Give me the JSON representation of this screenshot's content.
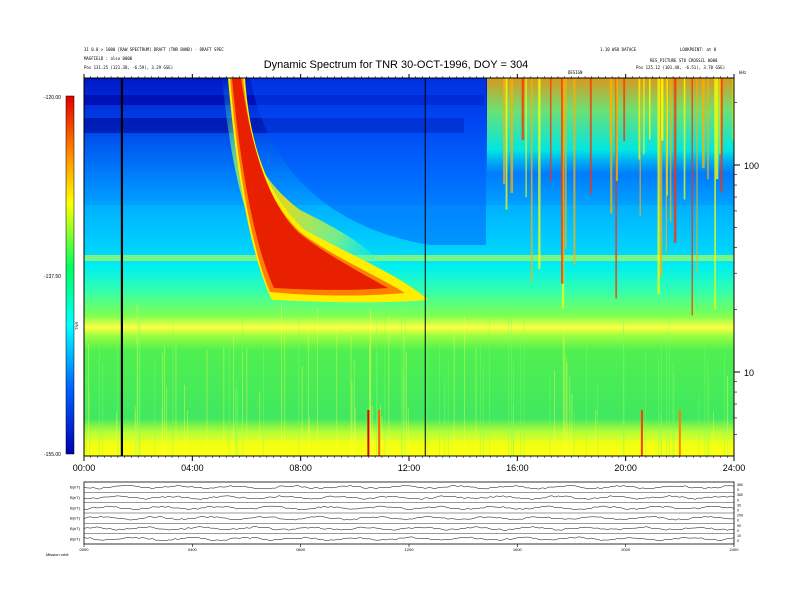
{
  "chart_data": {
    "type": "heatmap",
    "title": "Dynamic Spectrum for TNR 30-OCT-1996, DOY = 304",
    "xlim": [
      0,
      24
    ],
    "x_tick_labels": [
      "00:00",
      "04:00",
      "08:00",
      "12:00",
      "16:00",
      "20:00",
      "24:00"
    ],
    "y_scale": "log",
    "y_ticks": [
      10,
      100
    ],
    "y_tick_labels": [
      "10",
      "100"
    ],
    "colorbar": {
      "label": "TNR",
      "tick_labels": [
        "-120.00",
        "-137.50",
        "-155.00"
      ],
      "range": [
        -155,
        -120
      ],
      "colors": [
        "#0000b0",
        "#0060ff",
        "#00ffff",
        "#00ff60",
        "#ffff00",
        "#ff8000",
        "#e00000"
      ]
    },
    "features": {
      "type_ii_burst_start_hour": 5.5,
      "background_band_top_khz": 25,
      "vertical_markers_hours": [
        1.4,
        12.6
      ]
    },
    "header_left": [
      "31 0.0 > 1000 [RAW SPECTRUM] DRAFT (TNR BAND) - DRAFT SPEC",
      "MAGFIELD : also 0000",
      "Pos     131.25 (121.38, -6.59), 3.29 GSE)"
    ],
    "header_right": [
      "1.10 WSO DATACE",
      "LOOKPOINT: at 0",
      "RES_PICTURE STU CROSSCL 0000",
      "Pos     125.12 (101.48, -6.51), 3.70 GSE)"
    ],
    "header_mid": "DESIGN",
    "header_khz": "kHz",
    "bottom_panel": {
      "row_labels": [
        "B(nT)",
        "B(nT)",
        "B(nT)",
        "B(nT)",
        "B(nT)",
        "B(nT)"
      ],
      "x_tick_labels": [
        "0000",
        "0400",
        "0800",
        "1200",
        "1600",
        "2000",
        "2400"
      ],
      "right_tick_labels": [
        "360",
        "0",
        "360",
        "0",
        "30",
        "0",
        "200",
        "0",
        "90",
        "0",
        "10",
        "0"
      ],
      "footer_label": "Mission  orbit"
    }
  }
}
